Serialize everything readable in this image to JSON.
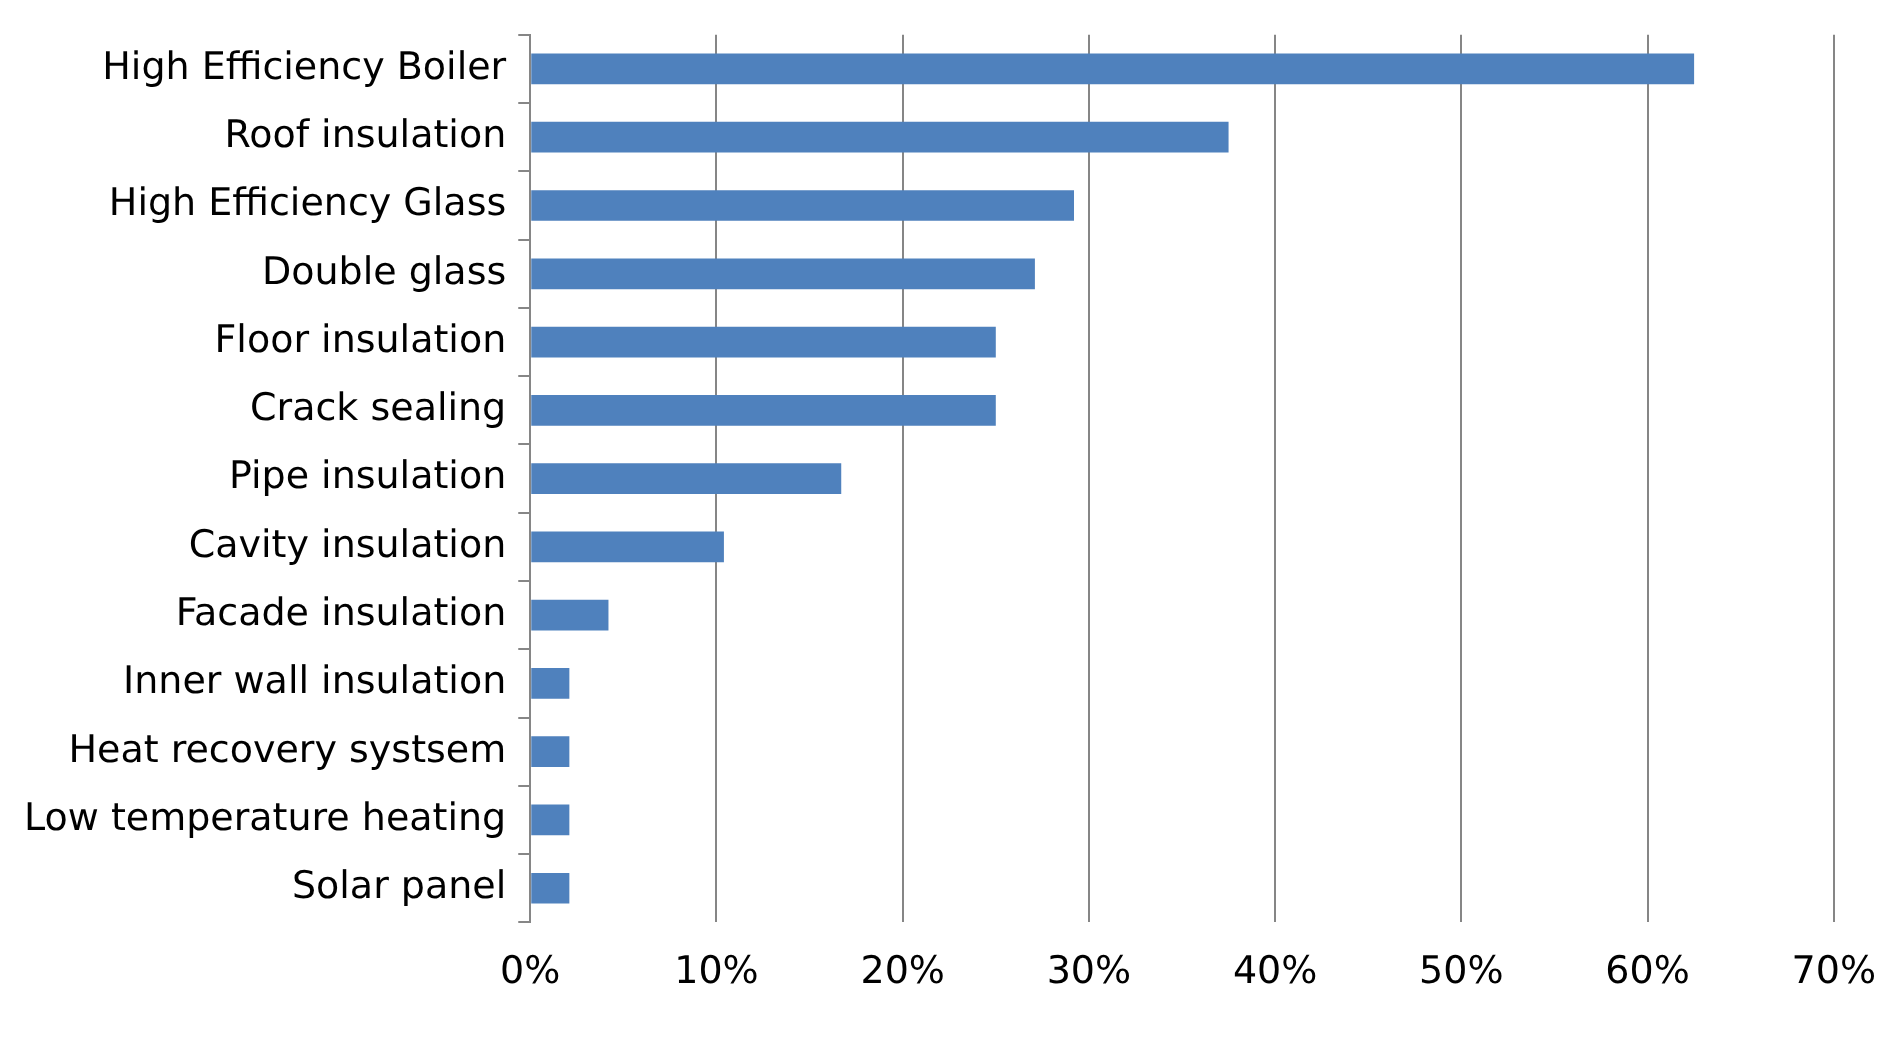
{
  "chart_data": {
    "type": "bar",
    "orientation": "horizontal",
    "categories": [
      "High Efficiency Boiler",
      "Roof insulation",
      "High Efficiency Glass",
      "Double glass",
      "Floor insulation",
      "Crack sealing",
      "Pipe insulation",
      "Cavity insulation",
      "Facade insulation",
      "Inner wall insulation",
      "Heat recovery systsem",
      "Low temperature heating",
      "Solar panel"
    ],
    "values": [
      62.5,
      37.5,
      29.2,
      27.1,
      25,
      25,
      16.7,
      10.4,
      4.2,
      2.1,
      2.1,
      2.1,
      2.1
    ],
    "color": "#4f81bd",
    "xlim": [
      0,
      70
    ],
    "xticks": [
      {
        "value": 0,
        "label": "0%"
      },
      {
        "value": 10,
        "label": "10%"
      },
      {
        "value": 20,
        "label": "20%"
      },
      {
        "value": 30,
        "label": "30%"
      },
      {
        "value": 40,
        "label": "40%"
      },
      {
        "value": 50,
        "label": "50%"
      },
      {
        "value": 60,
        "label": "60%"
      },
      {
        "value": 70,
        "label": "70%"
      }
    ],
    "grid": "x",
    "legend": false
  }
}
